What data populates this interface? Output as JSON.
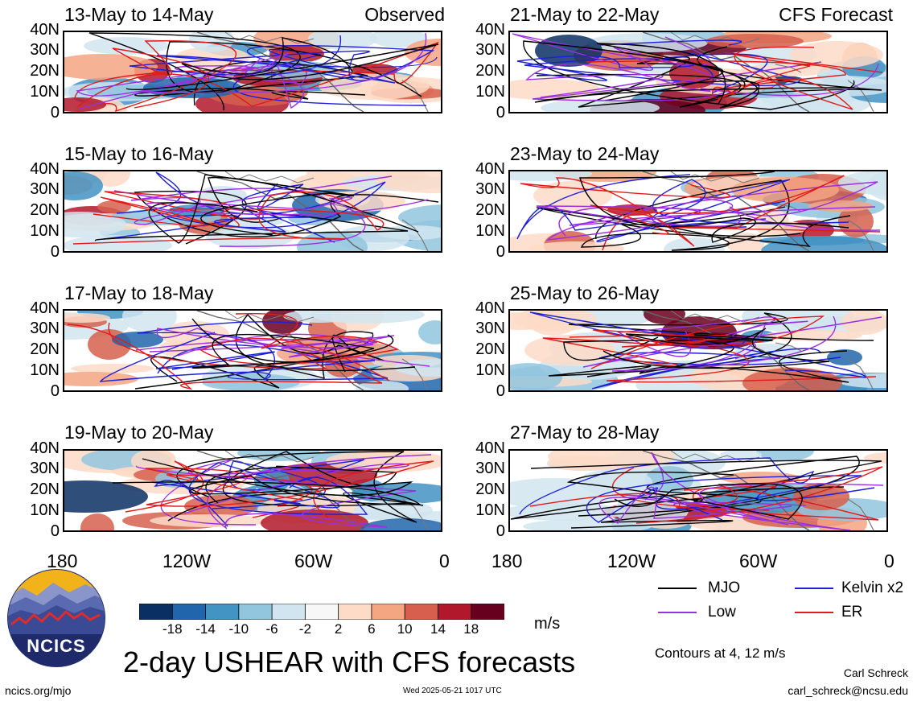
{
  "panels": [
    {
      "title": "13-May to 14-May",
      "tag": "Observed"
    },
    {
      "title": "15-May to 16-May",
      "tag": ""
    },
    {
      "title": "17-May to 18-May",
      "tag": ""
    },
    {
      "title": "19-May to 20-May",
      "tag": ""
    },
    {
      "title": "21-May to 22-May",
      "tag": "CFS Forecast"
    },
    {
      "title": "23-May to 24-May",
      "tag": ""
    },
    {
      "title": "25-May to 26-May",
      "tag": ""
    },
    {
      "title": "27-May to 28-May",
      "tag": ""
    }
  ],
  "y_ticks": [
    "40N",
    "30N",
    "20N",
    "10N",
    "0"
  ],
  "x_ticks": [
    "180",
    "120W",
    "60W",
    "0"
  ],
  "colorbar": {
    "ticks": [
      "-18",
      "-14",
      "-10",
      "-6",
      "-2",
      "2",
      "6",
      "10",
      "14",
      "18"
    ],
    "colors": [
      "#0a2f63",
      "#2166ac",
      "#4393c3",
      "#92c5de",
      "#d1e5f0",
      "#f7f7f7",
      "#fddbc7",
      "#f4a582",
      "#d6604d",
      "#b2182b",
      "#67001f"
    ],
    "unit": "m/s"
  },
  "legend": {
    "items": [
      {
        "label": "MJO",
        "color": "#000000"
      },
      {
        "label": "Kelvin x2",
        "color": "#1f1fd6"
      },
      {
        "label": "Low",
        "color": "#9b30e0"
      },
      {
        "label": "ER",
        "color": "#e01b1b"
      }
    ],
    "contours_note": "Contours at 4, 12 m/s"
  },
  "logo_text": "NCICS",
  "main_title": "2-day USHEAR with CFS forecasts",
  "footer": {
    "url": "ncics.org/mjo",
    "timestamp": "Wed 2025-05-21 1017 UTC",
    "author": "Carl Schreck",
    "email": "carl_schreck@ncsu.edu"
  }
}
